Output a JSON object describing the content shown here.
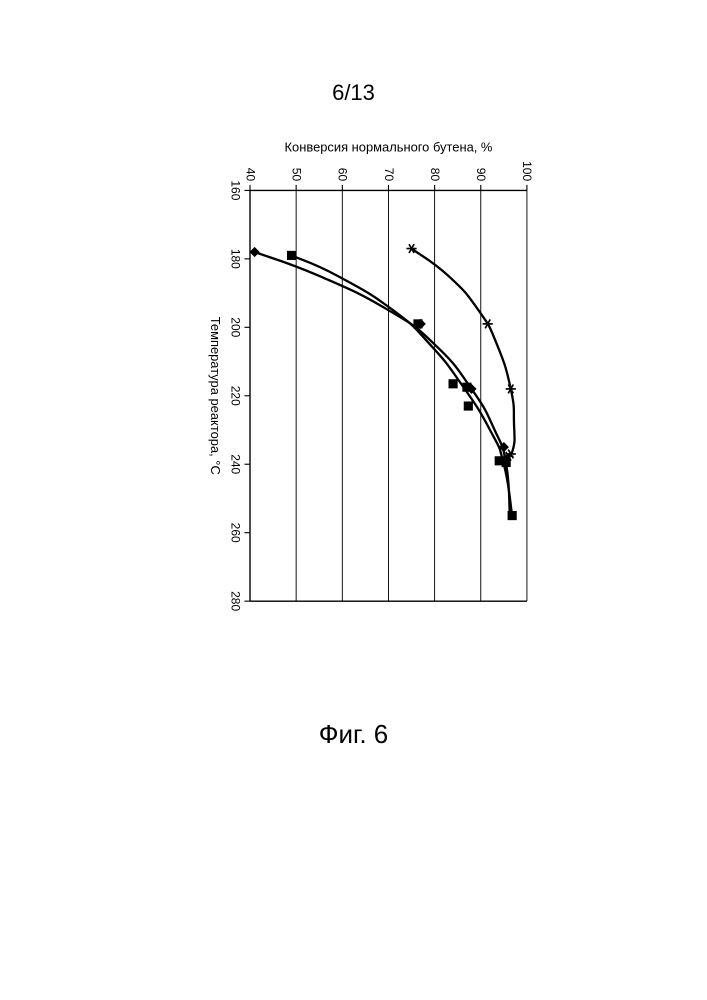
{
  "page_number_label": "6/13",
  "figure_label": "Фиг. 6",
  "chart": {
    "type": "scatter-line",
    "xlabel": "Температура реактора, °C",
    "ylabel": "Конверсия нормального бутена, %",
    "xlim": [
      160,
      280
    ],
    "ylim": [
      40,
      100
    ],
    "xticks": [
      160,
      180,
      200,
      220,
      240,
      260,
      280
    ],
    "yticks": [
      40,
      50,
      60,
      70,
      80,
      90,
      100
    ],
    "label_fontsize": 14,
    "tick_fontsize": 13,
    "line_width": 2.5,
    "marker_size": 8,
    "grid_color": "#000000",
    "axis_color": "#000000",
    "background_color": "#ffffff",
    "series": [
      {
        "name": "series_diamond",
        "marker": "diamond",
        "color": "#000000",
        "points": [
          {
            "x": 178,
            "y": 41
          },
          {
            "x": 199,
            "y": 77
          },
          {
            "x": 218,
            "y": 88
          },
          {
            "x": 235,
            "y": 95
          },
          {
            "x": 238.7,
            "y": 95.5
          }
        ],
        "curve": [
          {
            "x": 178,
            "y": 41
          },
          {
            "x": 185,
            "y": 55
          },
          {
            "x": 195,
            "y": 70
          },
          {
            "x": 205,
            "y": 80
          },
          {
            "x": 218,
            "y": 88
          },
          {
            "x": 230,
            "y": 93
          },
          {
            "x": 240,
            "y": 95.5
          },
          {
            "x": 255,
            "y": 96.3
          }
        ]
      },
      {
        "name": "series_square",
        "marker": "square",
        "color": "#000000",
        "points": [
          {
            "x": 179,
            "y": 49
          },
          {
            "x": 199,
            "y": 76.4
          },
          {
            "x": 216.5,
            "y": 84
          },
          {
            "x": 217.5,
            "y": 87
          },
          {
            "x": 223,
            "y": 87.3
          },
          {
            "x": 239,
            "y": 94
          },
          {
            "x": 239.5,
            "y": 95.5
          },
          {
            "x": 255,
            "y": 96.8
          }
        ],
        "curve": [
          {
            "x": 179,
            "y": 49
          },
          {
            "x": 185,
            "y": 59
          },
          {
            "x": 195,
            "y": 71
          },
          {
            "x": 205,
            "y": 79
          },
          {
            "x": 217,
            "y": 86
          },
          {
            "x": 230,
            "y": 92
          },
          {
            "x": 240,
            "y": 95
          },
          {
            "x": 255,
            "y": 96.8
          }
        ]
      },
      {
        "name": "series_star",
        "marker": "star",
        "color": "#000000",
        "points": [
          {
            "x": 177,
            "y": 75
          },
          {
            "x": 199,
            "y": 91.5
          },
          {
            "x": 218,
            "y": 96.5
          },
          {
            "x": 237,
            "y": 96.5
          },
          {
            "x": 237.7,
            "y": 96
          }
        ],
        "curve": [
          {
            "x": 177,
            "y": 75
          },
          {
            "x": 185,
            "y": 83
          },
          {
            "x": 195,
            "y": 89.5
          },
          {
            "x": 205,
            "y": 93.5
          },
          {
            "x": 218,
            "y": 96.5
          },
          {
            "x": 228,
            "y": 97.2
          },
          {
            "x": 236,
            "y": 96.9
          },
          {
            "x": 239,
            "y": 94.7
          }
        ]
      }
    ]
  }
}
